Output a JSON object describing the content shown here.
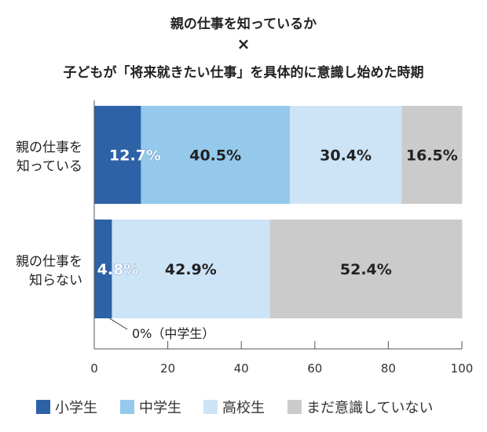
{
  "chart_data": {
    "type": "bar",
    "orientation": "horizontal",
    "stacked": true,
    "title_lines": [
      "親の仕事を知っているか",
      "×",
      "子どもが「将来就きたい仕事」を具体的に意識し始めた時期"
    ],
    "categories": [
      [
        "親の仕事を",
        "知っている"
      ],
      [
        "親の仕事を",
        "知らない"
      ]
    ],
    "series": [
      {
        "name": "小学生",
        "color": "#2d62a6",
        "values": [
          12.7,
          4.8
        ],
        "labels": [
          "12.7%",
          "4.8%"
        ]
      },
      {
        "name": "中学生",
        "color": "#94c9ec",
        "values": [
          40.5,
          0
        ],
        "labels": [
          "40.5%",
          ""
        ]
      },
      {
        "name": "高校生",
        "color": "#cde4f7",
        "values": [
          30.4,
          42.9
        ],
        "labels": [
          "30.4%",
          "42.9%"
        ]
      },
      {
        "name": "まだ意識していない",
        "color": "#cbcbcb",
        "values": [
          16.5,
          52.4
        ],
        "labels": [
          "16.5%",
          "52.4%"
        ]
      }
    ],
    "annotation": "0%（中学生）",
    "xlim": [
      0,
      100
    ],
    "xticks": [
      0,
      20,
      40,
      60,
      80,
      100
    ],
    "grid": false,
    "legend_placement": "bottom"
  }
}
